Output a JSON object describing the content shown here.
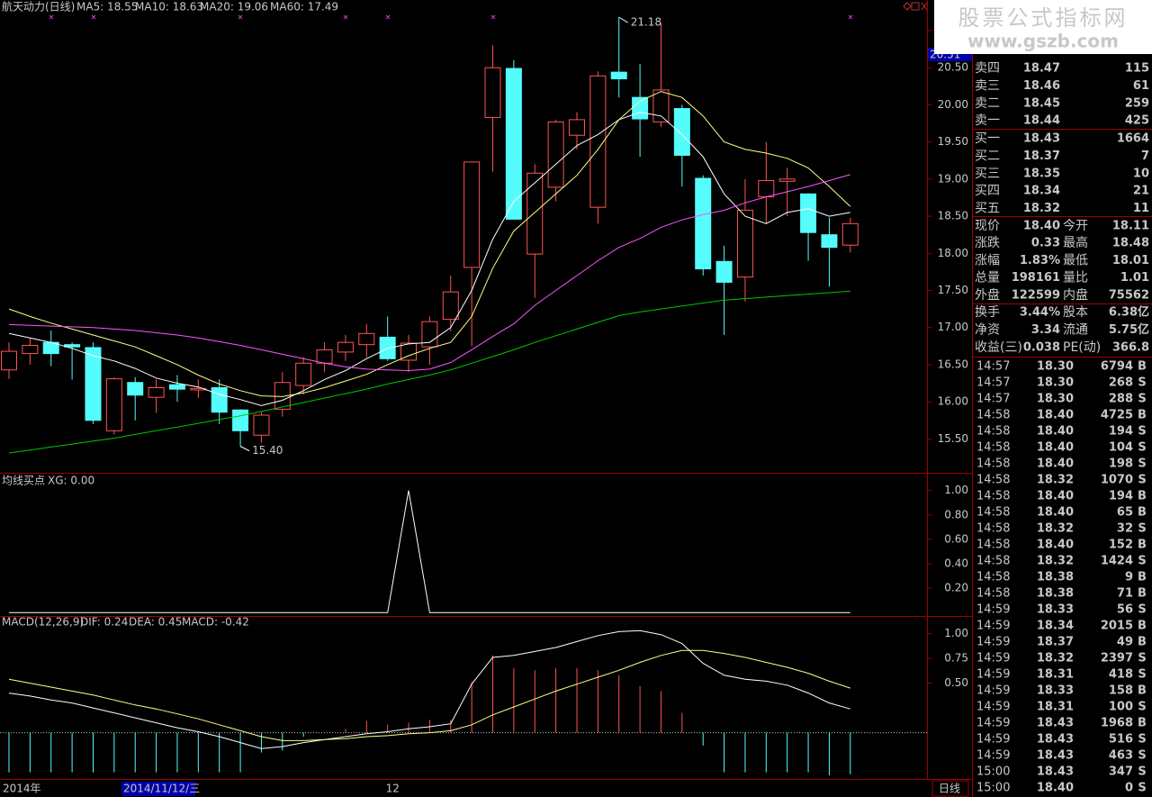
{
  "chart_data": [
    {
      "type": "candlestick",
      "title": "航天动力(日线)",
      "up_color": "#ff5454",
      "down_color": "#54fcfc",
      "categories": [
        "2014年",
        null,
        null,
        null,
        null,
        null,
        null,
        null,
        null,
        null,
        null,
        null,
        null,
        null,
        null,
        null,
        null,
        null,
        "12",
        null,
        null,
        null,
        null,
        null,
        null,
        null,
        null,
        null,
        null,
        null,
        null,
        null,
        null,
        null,
        null,
        null,
        null,
        null,
        null,
        null,
        null
      ],
      "open": [
        16.43,
        16.65,
        16.8,
        16.77,
        16.73,
        15.61,
        16.26,
        16.06,
        16.23,
        16.16,
        16.19,
        15.89,
        15.55,
        15.9,
        16.22,
        16.52,
        16.67,
        16.77,
        16.87,
        16.56,
        16.74,
        17.11,
        17.81,
        19.83,
        20.49,
        17.99,
        18.89,
        19.59,
        18.62,
        20.44,
        20.1,
        19.77,
        19.95,
        19.01,
        17.89,
        17.68,
        18.76,
        18.97,
        18.8,
        18.25,
        18.11
      ],
      "high": [
        16.8,
        16.86,
        16.96,
        16.8,
        16.8,
        16.33,
        16.33,
        16.3,
        16.36,
        16.3,
        16.3,
        15.9,
        15.86,
        16.4,
        16.6,
        16.8,
        16.9,
        17.05,
        17.15,
        16.9,
        17.15,
        17.7,
        19.23,
        20.8,
        20.6,
        19.2,
        19.8,
        19.9,
        20.45,
        21.18,
        20.55,
        21.1,
        20.0,
        19.05,
        18.1,
        19.0,
        19.5,
        19.15,
        18.81,
        18.48,
        18.48
      ],
      "low": [
        16.31,
        16.5,
        16.48,
        16.3,
        15.7,
        15.56,
        15.75,
        15.85,
        16.0,
        16.05,
        15.7,
        15.4,
        15.45,
        15.8,
        16.1,
        16.4,
        16.55,
        16.6,
        16.55,
        16.4,
        16.5,
        16.95,
        16.75,
        19.1,
        18.46,
        17.4,
        18.7,
        19.4,
        18.4,
        20.1,
        19.3,
        19.7,
        18.9,
        17.7,
        16.9,
        17.35,
        18.4,
        18.5,
        17.9,
        17.55,
        18.01
      ],
      "close": [
        16.68,
        16.76,
        16.65,
        16.74,
        15.75,
        16.31,
        16.09,
        16.19,
        16.17,
        16.18,
        15.86,
        15.61,
        15.82,
        16.26,
        16.52,
        16.7,
        16.8,
        16.92,
        16.58,
        16.79,
        17.08,
        17.48,
        19.23,
        20.5,
        18.46,
        19.08,
        19.77,
        19.8,
        20.39,
        20.35,
        19.81,
        20.2,
        19.32,
        17.79,
        17.61,
        18.58,
        18.98,
        19.0,
        18.28,
        18.08,
        18.4
      ],
      "series": [
        {
          "name": "MA5: 18.55",
          "color": "#ffffff",
          "values": [
            16.92,
            16.86,
            16.8,
            16.72,
            16.62,
            16.55,
            16.45,
            16.32,
            16.25,
            16.2,
            16.1,
            16.03,
            15.95,
            16.02,
            16.15,
            16.3,
            16.42,
            16.58,
            16.72,
            16.78,
            16.8,
            17.0,
            17.5,
            18.19,
            18.7,
            18.95,
            19.2,
            19.45,
            19.6,
            19.8,
            19.9,
            19.85,
            19.6,
            19.3,
            18.8,
            18.5,
            18.4,
            18.55,
            18.6,
            18.5,
            18.55
          ]
        },
        {
          "name": "MA10: 18.63",
          "color": "#ffff88",
          "values": [
            17.25,
            17.15,
            17.06,
            16.98,
            16.9,
            16.82,
            16.74,
            16.62,
            16.5,
            16.36,
            16.24,
            16.15,
            16.08,
            16.07,
            16.12,
            16.19,
            16.28,
            16.37,
            16.5,
            16.62,
            16.72,
            16.8,
            17.15,
            17.8,
            18.3,
            18.55,
            18.8,
            19.05,
            19.4,
            19.8,
            20.05,
            20.18,
            20.1,
            19.85,
            19.5,
            19.4,
            19.35,
            19.28,
            19.15,
            18.9,
            18.63
          ]
        },
        {
          "name": "MA20: 19.06",
          "color": "#ff54ff",
          "values": [
            17.04,
            17.03,
            17.02,
            17.01,
            17.0,
            16.98,
            16.96,
            16.93,
            16.9,
            16.86,
            16.81,
            16.76,
            16.7,
            16.64,
            16.58,
            16.52,
            16.47,
            16.44,
            16.43,
            16.42,
            16.44,
            16.53,
            16.7,
            16.88,
            17.05,
            17.3,
            17.5,
            17.7,
            17.9,
            18.08,
            18.2,
            18.35,
            18.45,
            18.52,
            18.58,
            18.68,
            18.76,
            18.83,
            18.9,
            18.98,
            19.06
          ]
        },
        {
          "name": "MA60: 17.49",
          "color": "#00c800",
          "values": [
            15.31,
            15.35,
            15.39,
            15.43,
            15.47,
            15.51,
            15.56,
            15.61,
            15.66,
            15.71,
            15.76,
            15.81,
            15.87,
            15.93,
            15.99,
            16.05,
            16.11,
            16.17,
            16.24,
            16.3,
            16.36,
            16.43,
            16.52,
            16.61,
            16.7,
            16.8,
            16.89,
            16.98,
            17.07,
            17.16,
            17.21,
            17.25,
            17.29,
            17.33,
            17.37,
            17.39,
            17.41,
            17.43,
            17.45,
            17.47,
            17.49
          ]
        }
      ],
      "max_label": "21.18",
      "min_label": "15.40",
      "cursor_price": "20.51",
      "cursor_date": "2014/11/12/三",
      "period": "日线",
      "ylim": [
        15.08,
        21.23
      ],
      "yticks": [
        {
          "value": 15.5,
          "label": "15.50"
        },
        {
          "value": 16,
          "label": "16.00"
        },
        {
          "value": 16.5,
          "label": "16.50"
        },
        {
          "value": 17,
          "label": "17.00"
        },
        {
          "value": 17.5,
          "label": "17.50"
        },
        {
          "value": 18,
          "label": "18.00"
        },
        {
          "value": 18.5,
          "label": "18.50"
        },
        {
          "value": 19,
          "label": "19.00"
        },
        {
          "value": 19.5,
          "label": "19.50"
        },
        {
          "value": 20,
          "label": "20.00"
        },
        {
          "value": 20.5,
          "label": "20.50"
        },
        {
          "value": 21,
          "label": "21.00"
        }
      ]
    },
    {
      "type": "line",
      "title": "均线买点",
      "series": [
        {
          "name": "XG: 0.00",
          "color": "#ffffff",
          "values": [
            0,
            0,
            0,
            0,
            0,
            0,
            0,
            0,
            0,
            0,
            0,
            0,
            0,
            0,
            0,
            0,
            0,
            0,
            0,
            1,
            0,
            0,
            0,
            0,
            0,
            0,
            0,
            0,
            0,
            0,
            0,
            0,
            0,
            0,
            0,
            0,
            0,
            0,
            0,
            0,
            0
          ]
        }
      ],
      "ylim": [
        -0.02,
        1.13
      ],
      "yticks": [
        {
          "value": 0.2,
          "label": "0.20"
        },
        {
          "value": 0.4,
          "label": "0.40"
        },
        {
          "value": 0.6,
          "label": "0.60"
        },
        {
          "value": 0.8,
          "label": "0.80"
        },
        {
          "value": 1,
          "label": "1.00"
        }
      ]
    },
    {
      "type": "macd",
      "title": "MACD(12,26,9)",
      "up_color": "#ff5454",
      "down_color": "#54fcfc",
      "series": [
        {
          "name": "DIF: 0.24",
          "color": "#ffffff",
          "values": [
            0.4,
            0.37,
            0.33,
            0.3,
            0.25,
            0.2,
            0.15,
            0.1,
            0.05,
            0.01,
            -0.04,
            -0.1,
            -0.16,
            -0.14,
            -0.1,
            -0.07,
            -0.04,
            -0.01,
            0.01,
            0.04,
            0.06,
            0.09,
            0.49,
            0.76,
            0.78,
            0.82,
            0.86,
            0.92,
            0.98,
            1.02,
            1.03,
            0.99,
            0.9,
            0.7,
            0.58,
            0.54,
            0.52,
            0.48,
            0.4,
            0.3,
            0.24
          ]
        },
        {
          "name": "DEA: 0.45",
          "color": "#ffff88",
          "values": [
            0.54,
            0.5,
            0.46,
            0.42,
            0.38,
            0.33,
            0.28,
            0.24,
            0.19,
            0.14,
            0.08,
            0.02,
            -0.04,
            -0.08,
            -0.08,
            -0.07,
            -0.06,
            -0.04,
            -0.03,
            -0.01,
            0.0,
            0.02,
            0.08,
            0.18,
            0.26,
            0.34,
            0.42,
            0.49,
            0.56,
            0.63,
            0.71,
            0.78,
            0.83,
            0.83,
            0.8,
            0.76,
            0.71,
            0.66,
            0.6,
            0.52,
            0.45
          ]
        },
        {
          "name": "MACD: -0.42",
          "color": "#ff54ff",
          "values": [
            -0.4,
            -0.4,
            -0.4,
            -0.4,
            -0.4,
            -0.4,
            -0.4,
            -0.4,
            -0.4,
            -0.4,
            -0.4,
            -0.4,
            -0.2,
            -0.18,
            -0.04,
            0.0,
            0.04,
            0.12,
            0.08,
            0.1,
            0.13,
            0.13,
            0.51,
            0.78,
            0.65,
            0.63,
            0.65,
            0.65,
            0.63,
            0.58,
            0.47,
            0.42,
            0.2,
            -0.13,
            -0.4,
            -0.4,
            -0.4,
            -0.4,
            -0.4,
            -0.43,
            -0.42
          ]
        }
      ],
      "ylim": [
        -0.44,
        1.16
      ],
      "yticks": [
        {
          "value": 0.5,
          "label": "0.50"
        },
        {
          "value": 0.75,
          "label": "0.75"
        },
        {
          "value": 1,
          "label": "1.00"
        }
      ]
    }
  ],
  "watermark": {
    "line1": "股票公式指标网",
    "line2": "www.gszb.com"
  },
  "order_book": {
    "sell": [
      {
        "label": "卖四",
        "price": "18.47",
        "volume": "115"
      },
      {
        "label": "卖三",
        "price": "18.46",
        "volume": "61"
      },
      {
        "label": "卖二",
        "price": "18.45",
        "volume": "259"
      },
      {
        "label": "卖一",
        "price": "18.44",
        "volume": "425"
      }
    ],
    "buy": [
      {
        "label": "买一",
        "price": "18.43",
        "volume": "1664"
      },
      {
        "label": "买二",
        "price": "18.37",
        "volume": "7"
      },
      {
        "label": "买三",
        "price": "18.35",
        "volume": "10"
      },
      {
        "label": "买四",
        "price": "18.34",
        "volume": "21"
      },
      {
        "label": "买五",
        "price": "18.32",
        "volume": "11"
      }
    ]
  },
  "quote": {
    "block1": [
      [
        {
          "label": "现价",
          "value": "18.40",
          "color": "#ff5454"
        },
        {
          "label": "今开",
          "value": "18.11",
          "color": "#ff5454"
        }
      ],
      [
        {
          "label": "涨跌",
          "value": "0.33",
          "color": "#ff5454"
        },
        {
          "label": "最高",
          "value": "18.48",
          "color": "#ff5454"
        }
      ],
      [
        {
          "label": "涨幅",
          "value": "1.83%",
          "color": "#ff5454"
        },
        {
          "label": "最低",
          "value": "18.01",
          "color": "#54ff54"
        }
      ],
      [
        {
          "label": "总量",
          "value": "198161",
          "color": "#ffff54"
        },
        {
          "label": "量比",
          "value": "1.01",
          "color": "#ffff54"
        }
      ],
      [
        {
          "label": "外盘",
          "value": "122599",
          "color": "#ff5454"
        },
        {
          "label": "内盘",
          "value": "75562",
          "color": "#54ff54"
        }
      ]
    ],
    "block2": [
      [
        {
          "label": "换手",
          "value": "3.44%",
          "color": "#ffffff"
        },
        {
          "label": "股本",
          "value": "6.38亿",
          "color": "#ffffff"
        }
      ],
      [
        {
          "label": "净资",
          "value": "3.34",
          "color": "#ffffff"
        },
        {
          "label": "流通",
          "value": "5.75亿",
          "color": "#ffffff"
        }
      ],
      [
        {
          "label": "收益(三)",
          "value": "0.038",
          "color": "#ffffff"
        },
        {
          "label": "PE(动)",
          "value": "366.8",
          "color": "#ffffff"
        }
      ]
    ]
  },
  "trades": [
    [
      "14:57",
      "18.30",
      "6794",
      "B"
    ],
    [
      "14:57",
      "18.30",
      "268",
      "S"
    ],
    [
      "14:57",
      "18.30",
      "288",
      "S"
    ],
    [
      "14:58",
      "18.40",
      "4725",
      "B"
    ],
    [
      "14:58",
      "18.40",
      "194",
      "S"
    ],
    [
      "14:58",
      "18.40",
      "104",
      "S"
    ],
    [
      "14:58",
      "18.40",
      "198",
      "S"
    ],
    [
      "14:58",
      "18.32",
      "1070",
      "S"
    ],
    [
      "14:58",
      "18.40",
      "194",
      "B"
    ],
    [
      "14:58",
      "18.40",
      "65",
      "B"
    ],
    [
      "14:58",
      "18.32",
      "32",
      "S"
    ],
    [
      "14:58",
      "18.40",
      "152",
      "B"
    ],
    [
      "14:58",
      "18.32",
      "1424",
      "S"
    ],
    [
      "14:58",
      "18.38",
      "9",
      "B"
    ],
    [
      "14:58",
      "18.38",
      "71",
      "B"
    ],
    [
      "14:59",
      "18.33",
      "56",
      "S"
    ],
    [
      "14:59",
      "18.34",
      "2015",
      "B"
    ],
    [
      "14:59",
      "18.37",
      "49",
      "B"
    ],
    [
      "14:59",
      "18.32",
      "2397",
      "S"
    ],
    [
      "14:59",
      "18.31",
      "418",
      "S"
    ],
    [
      "14:59",
      "18.33",
      "158",
      "B"
    ],
    [
      "14:59",
      "18.31",
      "100",
      "S"
    ],
    [
      "14:59",
      "18.43",
      "1968",
      "B"
    ],
    [
      "14:59",
      "18.43",
      "516",
      "S"
    ],
    [
      "14:59",
      "18.43",
      "463",
      "S"
    ],
    [
      "15:00",
      "18.43",
      "347",
      "S"
    ],
    [
      "15:00",
      "18.40",
      "0",
      "S"
    ]
  ]
}
